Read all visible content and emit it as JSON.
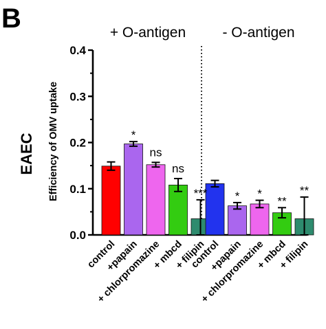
{
  "panel_label": "B",
  "row_label": "EAEC",
  "chart_data": {
    "type": "bar",
    "ylabel": "Efficiency of OMV uptake",
    "ylim": [
      0,
      0.4
    ],
    "yticks": [
      "0.0",
      "0.1",
      "0.2",
      "0.3",
      "0.4"
    ],
    "groups": [
      {
        "label": "+ O-antigen",
        "categories": [
          "control",
          "+papain",
          "+ chlorpromazine",
          "+ mbcd",
          "+ filipin"
        ],
        "values": [
          0.149,
          0.197,
          0.152,
          0.108,
          0.035
        ],
        "errors": [
          0.009,
          0.005,
          0.005,
          0.014,
          0.041
        ],
        "significance": [
          "",
          "*",
          "ns",
          "ns",
          "***"
        ],
        "colors": [
          "#ff0000",
          "#aa66ee",
          "#ee66ee",
          "#33cc11",
          "#2e8b6e"
        ]
      },
      {
        "label": "- O-antigen",
        "categories": [
          "control",
          "+papain",
          "+ chlorpromazine",
          "+ mbcd",
          "+ filipin"
        ],
        "values": [
          0.111,
          0.063,
          0.067,
          0.048,
          0.035
        ],
        "errors": [
          0.007,
          0.007,
          0.008,
          0.011,
          0.047
        ],
        "significance": [
          "",
          "*",
          "*",
          "**",
          "**"
        ],
        "colors": [
          "#2233ee",
          "#aa66ee",
          "#ee66ee",
          "#33cc11",
          "#2e8b6e"
        ]
      }
    ],
    "grid": false,
    "legend": "none",
    "separator": "dotted-vertical-between-groups"
  }
}
